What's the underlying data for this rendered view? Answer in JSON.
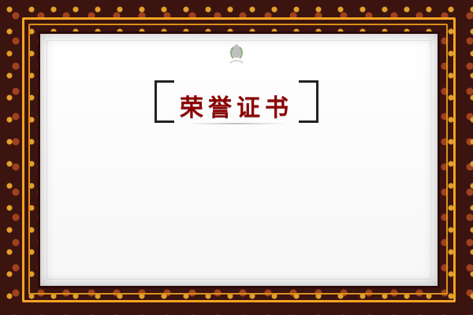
{
  "certificate": {
    "title": "荣誉证书",
    "recipient_line": "",
    "body_lines": [
      "",
      "",
      ""
    ],
    "issuer": "",
    "date": ""
  },
  "colors": {
    "frame_dark": "#3b130f",
    "frame_gold": "#f2a521",
    "paper": "#ffffff",
    "title_text": "#8b0000"
  },
  "icons": {
    "emblem": "emblem-icon"
  }
}
